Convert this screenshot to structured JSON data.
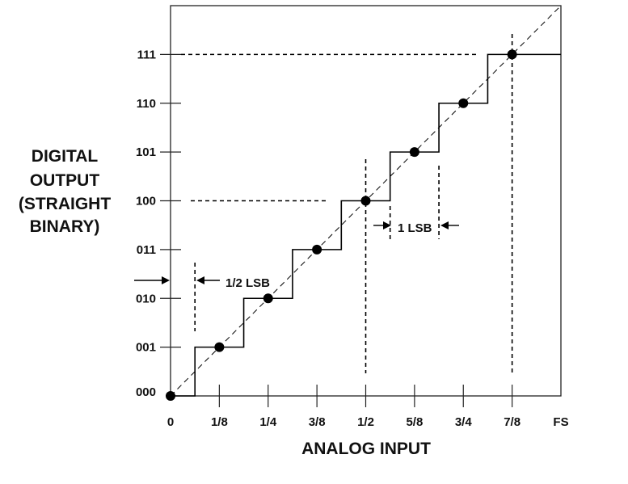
{
  "chart_data": {
    "type": "line",
    "title": "",
    "xlabel": "ANALOG INPUT",
    "ylabel_lines": [
      "DIGITAL",
      "OUTPUT",
      "(STRAIGHT",
      "BINARY)"
    ],
    "x_ticks": [
      "0",
      "1/8",
      "1/4",
      "3/8",
      "1/2",
      "5/8",
      "3/4",
      "7/8",
      "FS"
    ],
    "y_ticks": [
      "000",
      "001",
      "010",
      "011",
      "100",
      "101",
      "110",
      "111"
    ],
    "xlim": [
      0,
      1
    ],
    "ylim": [
      0,
      8
    ],
    "series": [
      {
        "kind": "transfer-staircase",
        "x": [
          0,
          0.0625,
          0.0625,
          0.1875,
          0.1875,
          0.3125,
          0.3125,
          0.4375,
          0.4375,
          0.5625,
          0.5625,
          0.6875,
          0.6875,
          0.8125,
          0.8125,
          1.0
        ],
        "y": [
          0,
          0,
          1,
          1,
          2,
          2,
          3,
          3,
          4,
          4,
          5,
          5,
          6,
          6,
          7,
          7
        ]
      },
      {
        "kind": "ideal-line",
        "x": [
          0,
          1.0
        ],
        "y": [
          0,
          8
        ]
      },
      {
        "kind": "code-centers",
        "x": [
          0,
          0.125,
          0.25,
          0.375,
          0.5,
          0.625,
          0.75,
          0.875
        ],
        "y": [
          0,
          1,
          2,
          3,
          4,
          5,
          6,
          7
        ]
      }
    ],
    "annotations": {
      "half_lsb": "1/2 LSB",
      "one_lsb": "1 LSB"
    },
    "grid": false,
    "legend": "none"
  }
}
